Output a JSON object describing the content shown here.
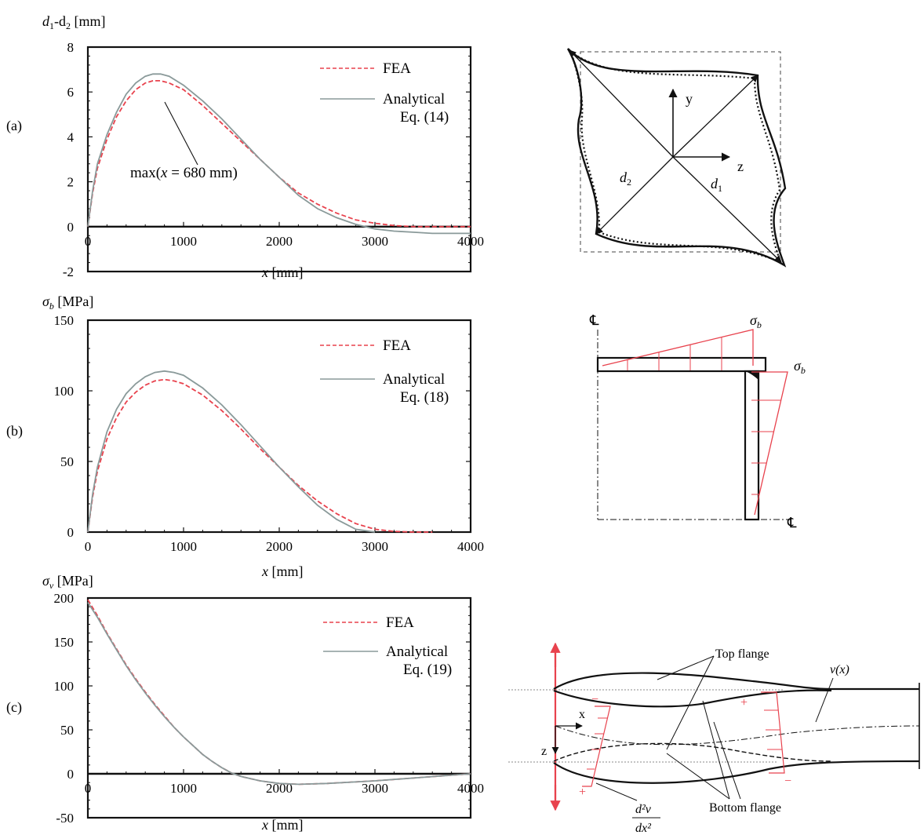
{
  "panels": [
    {
      "id": "a",
      "panel_label": "(a)",
      "ylabel_main": "d",
      "ylabel_sub1": "1",
      "ylabel_mid": "-d",
      "ylabel_sub2": "2",
      "ylabel_unit": " [mm]",
      "xlabel_var": "x",
      "xlabel_unit": " [mm]",
      "legend_fea": "FEA",
      "legend_analytical": "Analytical",
      "legend_eq": "Eq. (14)",
      "annotation": "max(x = 680 mm)",
      "annotation_pre": "max(",
      "annotation_var": "x",
      "annotation_post": " = 680 mm)"
    },
    {
      "id": "b",
      "panel_label": "(b)",
      "ylabel_sym": "σ",
      "ylabel_sub": "b",
      "ylabel_unit": " [MPa]",
      "xlabel_var": "x",
      "xlabel_unit": " [mm]",
      "legend_fea": "FEA",
      "legend_analytical": "Analytical",
      "legend_eq": "Eq. (18)"
    },
    {
      "id": "c",
      "panel_label": "(c)",
      "ylabel_sym": "σ",
      "ylabel_sub": "v",
      "ylabel_unit": " [MPa]",
      "xlabel_var": "x",
      "xlabel_unit": " [mm]",
      "legend_fea": "FEA",
      "legend_analytical": "Analytical",
      "legend_eq": "Eq. (19)"
    }
  ],
  "diagrams": {
    "a": {
      "axis_y": "y",
      "axis_z": "z",
      "d1": "d",
      "d1_sub": "1",
      "d2": "d",
      "d2_sub": "2"
    },
    "b": {
      "cl": "℄",
      "sigma": "σ",
      "sigma_sub": "b"
    },
    "c": {
      "top_flange": "Top flange",
      "bottom_flange": "Bottom flange",
      "vx": "v(x)",
      "axis_x": "x",
      "axis_z": "z",
      "d2v": "d²v",
      "dx2": "dx²",
      "plus": "+",
      "minus": "−"
    }
  },
  "colors": {
    "fea": "#e8424d",
    "analytical": "#8a9a9a",
    "diagram_red": "#e8424d"
  },
  "chart_data": [
    {
      "type": "line",
      "xlim": [
        0,
        4000
      ],
      "ylim": [
        -2,
        8
      ],
      "xticks": [
        0,
        1000,
        2000,
        3000,
        4000
      ],
      "yticks": [
        -2,
        0,
        2,
        4,
        6,
        8
      ],
      "series": [
        {
          "name": "FEA",
          "style": "dashed",
          "x": [
            0,
            50,
            100,
            200,
            300,
            400,
            500,
            600,
            680,
            760,
            850,
            1000,
            1200,
            1400,
            1600,
            1800,
            2000,
            2200,
            2400,
            2600,
            2800,
            3000,
            3200,
            3400,
            3600,
            3800,
            4000
          ],
          "y": [
            0,
            1.5,
            2.6,
            3.9,
            4.9,
            5.6,
            6.1,
            6.4,
            6.5,
            6.5,
            6.4,
            6.1,
            5.4,
            4.6,
            3.8,
            3.0,
            2.2,
            1.5,
            1.0,
            0.6,
            0.3,
            0.15,
            0.05,
            0.0,
            0.0,
            0.0,
            0.0
          ]
        },
        {
          "name": "Analytical",
          "style": "solid",
          "x": [
            0,
            50,
            100,
            200,
            300,
            400,
            500,
            600,
            680,
            760,
            850,
            1000,
            1200,
            1400,
            1600,
            1800,
            2000,
            2200,
            2400,
            2600,
            2800,
            3000,
            3200,
            3400,
            3600,
            3800,
            4000
          ],
          "y": [
            0,
            1.6,
            2.8,
            4.1,
            5.1,
            5.9,
            6.4,
            6.7,
            6.8,
            6.8,
            6.7,
            6.3,
            5.6,
            4.8,
            3.9,
            3.0,
            2.2,
            1.4,
            0.8,
            0.4,
            0.1,
            -0.1,
            -0.2,
            -0.25,
            -0.3,
            -0.3,
            -0.3
          ]
        }
      ]
    },
    {
      "type": "line",
      "xlim": [
        0,
        4000
      ],
      "ylim": [
        0,
        150
      ],
      "xticks": [
        0,
        1000,
        2000,
        3000,
        4000
      ],
      "yticks": [
        0,
        50,
        100,
        150
      ],
      "series": [
        {
          "name": "FEA",
          "style": "dashed",
          "x": [
            0,
            50,
            100,
            200,
            300,
            400,
            500,
            600,
            700,
            800,
            900,
            1000,
            1200,
            1400,
            1600,
            1800,
            2000,
            2200,
            2400,
            2600,
            2800,
            3000,
            3200,
            3400,
            3600
          ],
          "y": [
            0,
            25,
            43,
            66,
            81,
            92,
            99,
            104,
            107,
            108,
            107,
            105,
            97,
            86,
            73,
            59,
            46,
            33,
            22,
            13,
            6,
            2,
            0.5,
            0,
            0
          ]
        },
        {
          "name": "Analytical",
          "style": "solid",
          "x": [
            0,
            50,
            100,
            200,
            300,
            400,
            500,
            600,
            700,
            800,
            900,
            1000,
            1200,
            1400,
            1600,
            1800,
            2000,
            2200,
            2400,
            2600,
            2800,
            3000
          ],
          "y": [
            0,
            27,
            46,
            71,
            87,
            98,
            105,
            110,
            113,
            114,
            113,
            111,
            102,
            90,
            76,
            61,
            46,
            32,
            19,
            9,
            2,
            0
          ]
        }
      ]
    },
    {
      "type": "line",
      "xlim": [
        0,
        4000
      ],
      "ylim": [
        -50,
        200
      ],
      "xticks": [
        0,
        1000,
        2000,
        3000,
        4000
      ],
      "yticks": [
        -50,
        0,
        50,
        100,
        150,
        200
      ],
      "series": [
        {
          "name": "FEA",
          "style": "dashed",
          "x": [
            0,
            100,
            200,
            300,
            400,
            500,
            600,
            700,
            800,
            900,
            1000,
            1100,
            1200,
            1300,
            1400,
            1500,
            1600,
            1800,
            2000,
            2200,
            2500,
            3000,
            3500,
            4000
          ],
          "y": [
            198,
            180,
            160,
            142,
            124,
            108,
            93,
            79,
            66,
            53,
            42,
            32,
            22,
            14,
            7,
            1,
            -3,
            -8,
            -11,
            -12,
            -11,
            -8,
            -4,
            0
          ]
        },
        {
          "name": "Analytical",
          "style": "solid",
          "x": [
            0,
            100,
            200,
            300,
            400,
            500,
            600,
            700,
            800,
            900,
            1000,
            1100,
            1200,
            1300,
            1400,
            1500,
            1600,
            1800,
            2000,
            2200,
            2500,
            3000,
            3500,
            4000
          ],
          "y": [
            195,
            178,
            159,
            141,
            123,
            107,
            92,
            78,
            65,
            53,
            42,
            32,
            22,
            14,
            7,
            1,
            -3,
            -8,
            -11,
            -12,
            -11,
            -8,
            -4,
            0
          ]
        }
      ]
    }
  ]
}
